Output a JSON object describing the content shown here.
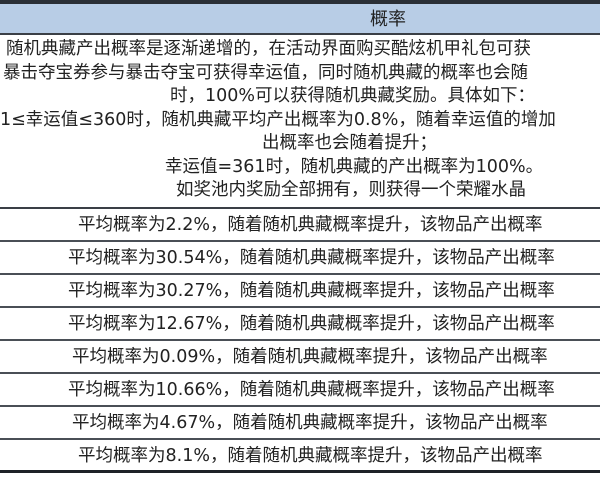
{
  "header": {
    "title": "概率"
  },
  "description": [
    "随机典藏产出概率是逐渐递增的，在活动界面购买酷炫机甲礼包可获",
    "暴击夺宝券参与暴击夺宝可获得幸运值，同时随机典藏的概率也会随",
    "时，100%可以获得随机典藏奖励。具体如下：",
    "1≤幸运值≤360时，随机典藏平均产出概率为0.8%，随着幸运值的增加",
    "出概率也会随着提升；",
    "幸运值=361时，随机典藏的产出概率为100%。",
    "如奖池内奖励全部拥有，则获得一个荣耀水晶"
  ],
  "rows": [
    "平均概率为2.2%，随着随机典藏概率提升，该物品产出概率",
    "平均概率为30.54%，随着随机典藏概率提升，该物品产出概率",
    "平均概率为30.27%，随着随机典藏概率提升，该物品产出概率",
    "平均概率为12.67%，随着随机典藏概率提升，该物品产出概率",
    "平均概率为0.09%，随着随机典藏概率提升，该物品产出概率",
    "平均概率为10.66%，随着随机典藏概率提升，该物品产出概率",
    "平均概率为4.67%，随着随机典藏概率提升，该物品产出概率",
    "平均概率为8.1%，随着随机典藏概率提升，该物品产出概率"
  ]
}
